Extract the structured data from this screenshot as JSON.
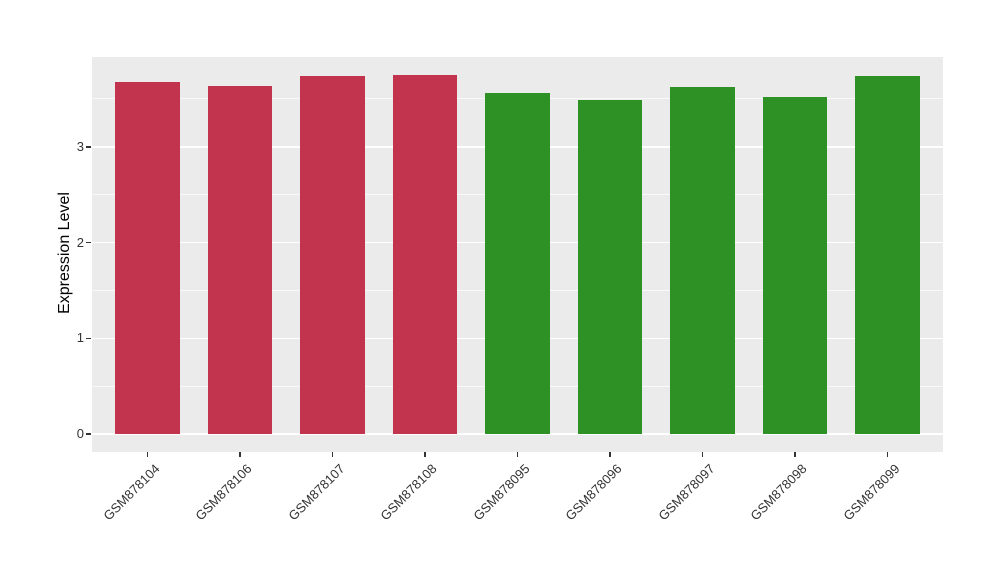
{
  "chart_data": {
    "type": "bar",
    "title": "",
    "xlabel": "",
    "ylabel": "Expression Level",
    "categories": [
      "GSM878104",
      "GSM878106",
      "GSM878107",
      "GSM878108",
      "GSM878095",
      "GSM878096",
      "GSM878097",
      "GSM878098",
      "GSM878099"
    ],
    "values": [
      3.68,
      3.63,
      3.74,
      3.75,
      3.56,
      3.49,
      3.62,
      3.52,
      3.74
    ],
    "groups": [
      "group1",
      "group1",
      "group1",
      "group1",
      "group2",
      "group2",
      "group2",
      "group2",
      "group2"
    ],
    "group_colors": {
      "group1": "#C2334D",
      "group2": "#2E9125"
    },
    "y_ticks": [
      0,
      1,
      2,
      3
    ],
    "y_minor_ticks": [
      0.5,
      1.5,
      2.5,
      3.5
    ],
    "ylim": [
      -0.1875,
      3.9375
    ],
    "bar_width_frac": 0.7,
    "x_label_angle": -45,
    "legend": "none",
    "grid": "on",
    "colors": {
      "panel_background": "#EBEBEB",
      "grid_major": "#FFFFFF",
      "grid_minor": "rgba(255,255,255,0.7)",
      "tick_mark": "#333333",
      "axis_text": "#333333",
      "axis_title": "#000000"
    }
  }
}
